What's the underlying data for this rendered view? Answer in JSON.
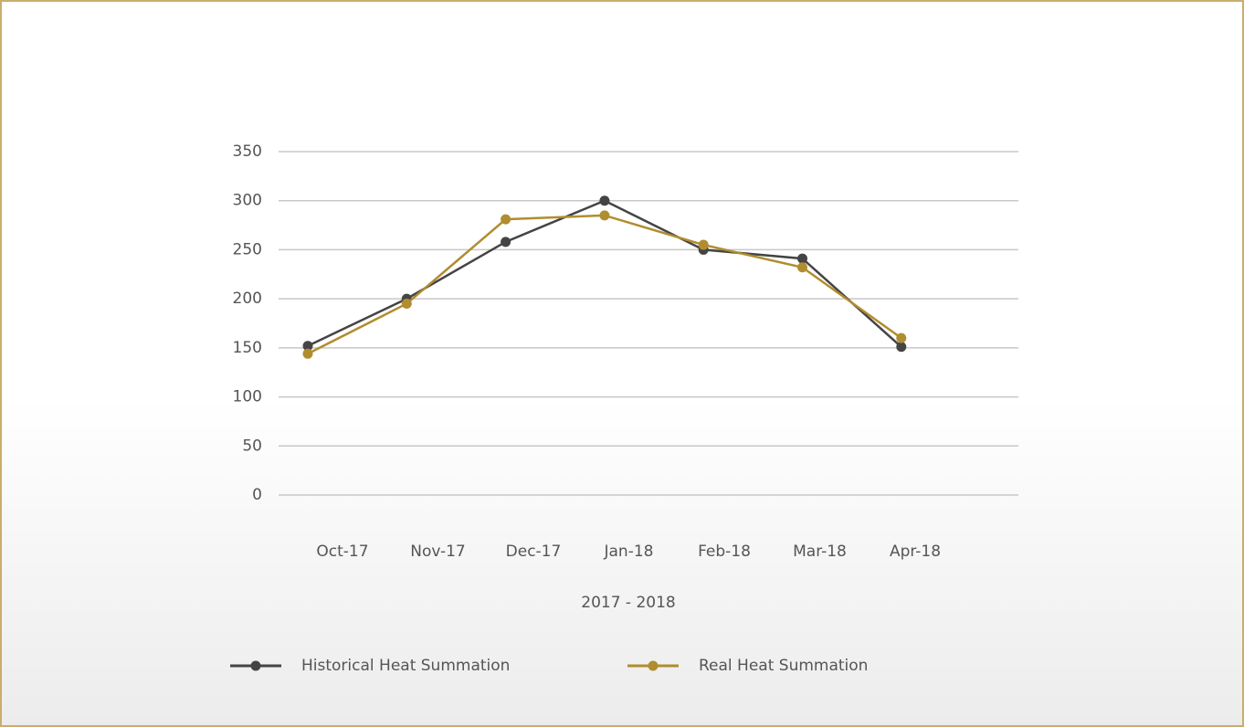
{
  "chart_data": {
    "type": "line",
    "x_label": "2017 - 2018",
    "categories": [
      "Oct-17",
      "Nov-17",
      "Dec-17",
      "Jan-18",
      "Feb-18",
      "Mar-18",
      "Apr-18"
    ],
    "series": [
      {
        "name": "Historical Heat Summation",
        "color": "#444444",
        "values": [
          152,
          200,
          258,
          300,
          250,
          241,
          151
        ]
      },
      {
        "name": "Real Heat Summation",
        "color": "#b08d2e",
        "values": [
          144,
          195,
          281,
          285,
          255,
          232,
          160
        ]
      }
    ],
    "ylim": [
      0,
      350
    ],
    "yticks": [
      0,
      50,
      100,
      150,
      200,
      250,
      300,
      350
    ],
    "grid": true,
    "legend": "bottom"
  }
}
